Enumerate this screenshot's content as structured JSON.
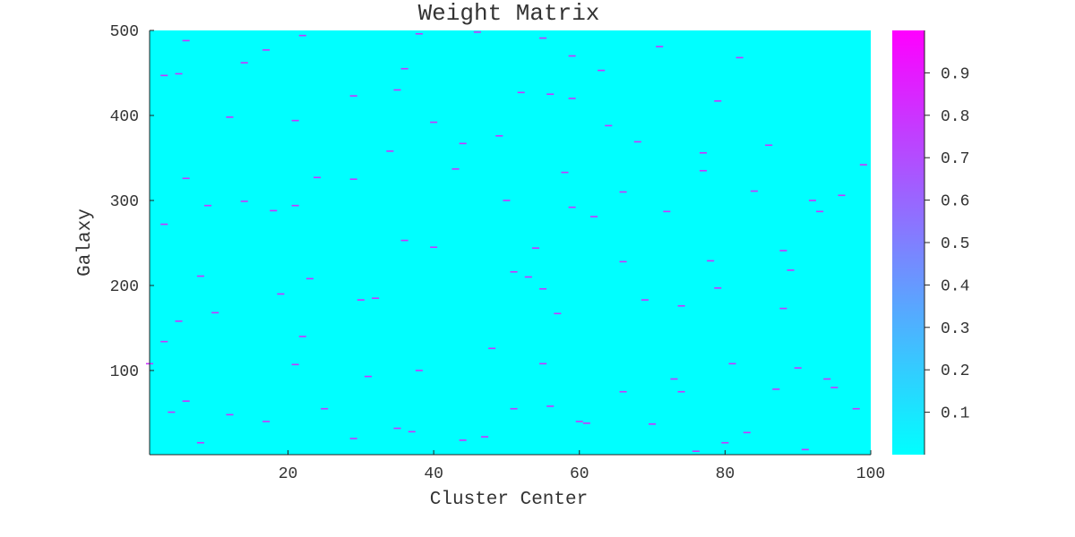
{
  "chart_data": {
    "type": "heatmap",
    "title": "Weight Matrix",
    "xlabel": "Cluster Center",
    "ylabel": "Galaxy",
    "xlim": [
      1,
      100
    ],
    "ylim": [
      1,
      500
    ],
    "x_ticks": [
      20,
      40,
      60,
      80,
      100
    ],
    "y_ticks": [
      100,
      200,
      300,
      400,
      500
    ],
    "colormap": "cool",
    "colormap_low": "#00ffff",
    "colormap_high": "#ff00ff",
    "colorbar": {
      "range": [
        0,
        1
      ],
      "ticks": [
        "0.1",
        "0.2",
        "0.3",
        "0.4",
        "0.5",
        "0.6",
        "0.7",
        "0.8",
        "0.9"
      ]
    },
    "description_values": {
      "background_weight": 0.0,
      "highlight_weight": 1.0,
      "cells": [
        [
          22,
          494
        ],
        [
          38,
          496
        ],
        [
          46,
          498
        ],
        [
          6,
          488
        ],
        [
          55,
          491
        ],
        [
          17,
          477
        ],
        [
          71,
          481
        ],
        [
          82,
          468
        ],
        [
          5,
          449
        ],
        [
          3,
          447
        ],
        [
          14,
          462
        ],
        [
          36,
          455
        ],
        [
          63,
          453
        ],
        [
          59,
          470
        ],
        [
          35,
          430
        ],
        [
          52,
          427
        ],
        [
          56,
          425
        ],
        [
          59,
          420
        ],
        [
          79,
          417
        ],
        [
          12,
          398
        ],
        [
          29,
          423
        ],
        [
          21,
          394
        ],
        [
          40,
          392
        ],
        [
          64,
          388
        ],
        [
          49,
          376
        ],
        [
          44,
          367
        ],
        [
          68,
          369
        ],
        [
          86,
          365
        ],
        [
          77,
          356
        ],
        [
          34,
          358
        ],
        [
          99,
          342
        ],
        [
          43,
          337
        ],
        [
          58,
          333
        ],
        [
          77,
          335
        ],
        [
          6,
          326
        ],
        [
          24,
          327
        ],
        [
          29,
          325
        ],
        [
          92,
          300
        ],
        [
          14,
          299
        ],
        [
          50,
          300
        ],
        [
          59,
          292
        ],
        [
          66,
          310
        ],
        [
          84,
          311
        ],
        [
          96,
          306
        ],
        [
          21,
          294
        ],
        [
          18,
          288
        ],
        [
          9,
          294
        ],
        [
          3,
          272
        ],
        [
          62,
          281
        ],
        [
          72,
          287
        ],
        [
          93,
          287
        ],
        [
          36,
          253
        ],
        [
          40,
          245
        ],
        [
          54,
          244
        ],
        [
          66,
          228
        ],
        [
          78,
          229
        ],
        [
          88,
          241
        ],
        [
          8,
          211
        ],
        [
          23,
          208
        ],
        [
          51,
          216
        ],
        [
          53,
          210
        ],
        [
          55,
          196
        ],
        [
          79,
          197
        ],
        [
          89,
          218
        ],
        [
          19,
          190
        ],
        [
          30,
          183
        ],
        [
          32,
          185
        ],
        [
          57,
          167
        ],
        [
          69,
          183
        ],
        [
          74,
          176
        ],
        [
          88,
          173
        ],
        [
          10,
          168
        ],
        [
          5,
          158
        ],
        [
          22,
          140
        ],
        [
          21,
          107
        ],
        [
          31,
          93
        ],
        [
          38,
          100
        ],
        [
          48,
          126
        ],
        [
          55,
          108
        ],
        [
          73,
          90
        ],
        [
          81,
          108
        ],
        [
          90,
          103
        ],
        [
          94,
          90
        ],
        [
          95,
          80
        ],
        [
          87,
          78
        ],
        [
          3,
          134
        ],
        [
          17,
          40
        ],
        [
          29,
          20
        ],
        [
          35,
          32
        ],
        [
          37,
          28
        ],
        [
          60,
          40
        ],
        [
          61,
          38
        ],
        [
          44,
          18
        ],
        [
          47,
          22
        ],
        [
          76,
          5
        ],
        [
          80,
          15
        ],
        [
          83,
          27
        ],
        [
          91,
          7
        ],
        [
          98,
          55
        ],
        [
          6,
          64
        ],
        [
          4,
          51
        ],
        [
          8,
          15
        ],
        [
          25,
          55
        ],
        [
          51,
          55
        ],
        [
          56,
          58
        ],
        [
          66,
          75
        ],
        [
          74,
          75
        ],
        [
          1,
          108
        ],
        [
          70,
          37
        ],
        [
          12,
          48
        ]
      ]
    }
  }
}
